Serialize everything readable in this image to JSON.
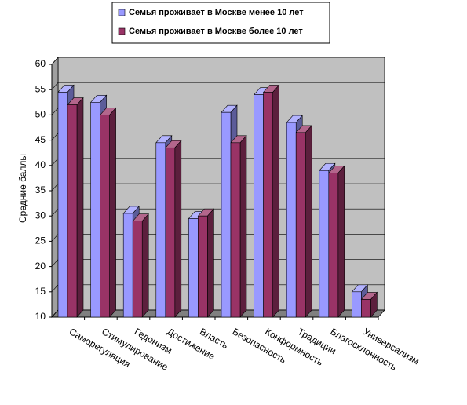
{
  "chart_data": {
    "type": "bar3d",
    "y_label": "Средние баллы",
    "categories": [
      "Саморегуляция",
      "Стимулирование",
      "Гедонизм",
      "Достижение",
      "Власть",
      "Безопасность",
      "Конформность",
      "Традиции",
      "Благосклонность",
      "Универсализм"
    ],
    "series": [
      {
        "name": "Семья проживает в Москве менее 10 лет",
        "color": "#9999ff",
        "values": [
          54.5,
          52.5,
          30.5,
          44.5,
          29.5,
          50.5,
          54,
          48.5,
          39,
          15
        ]
      },
      {
        "name": "Семья проживает в Москве более 10 лет",
        "color": "#993366",
        "values": [
          52,
          50,
          29,
          43.5,
          30,
          44.5,
          54.5,
          46.5,
          38.5,
          13.5
        ]
      }
    ],
    "ylim": [
      10,
      60
    ],
    "yticks": [
      10,
      15,
      20,
      25,
      30,
      35,
      40,
      45,
      50,
      55,
      60
    ],
    "grid": true
  }
}
